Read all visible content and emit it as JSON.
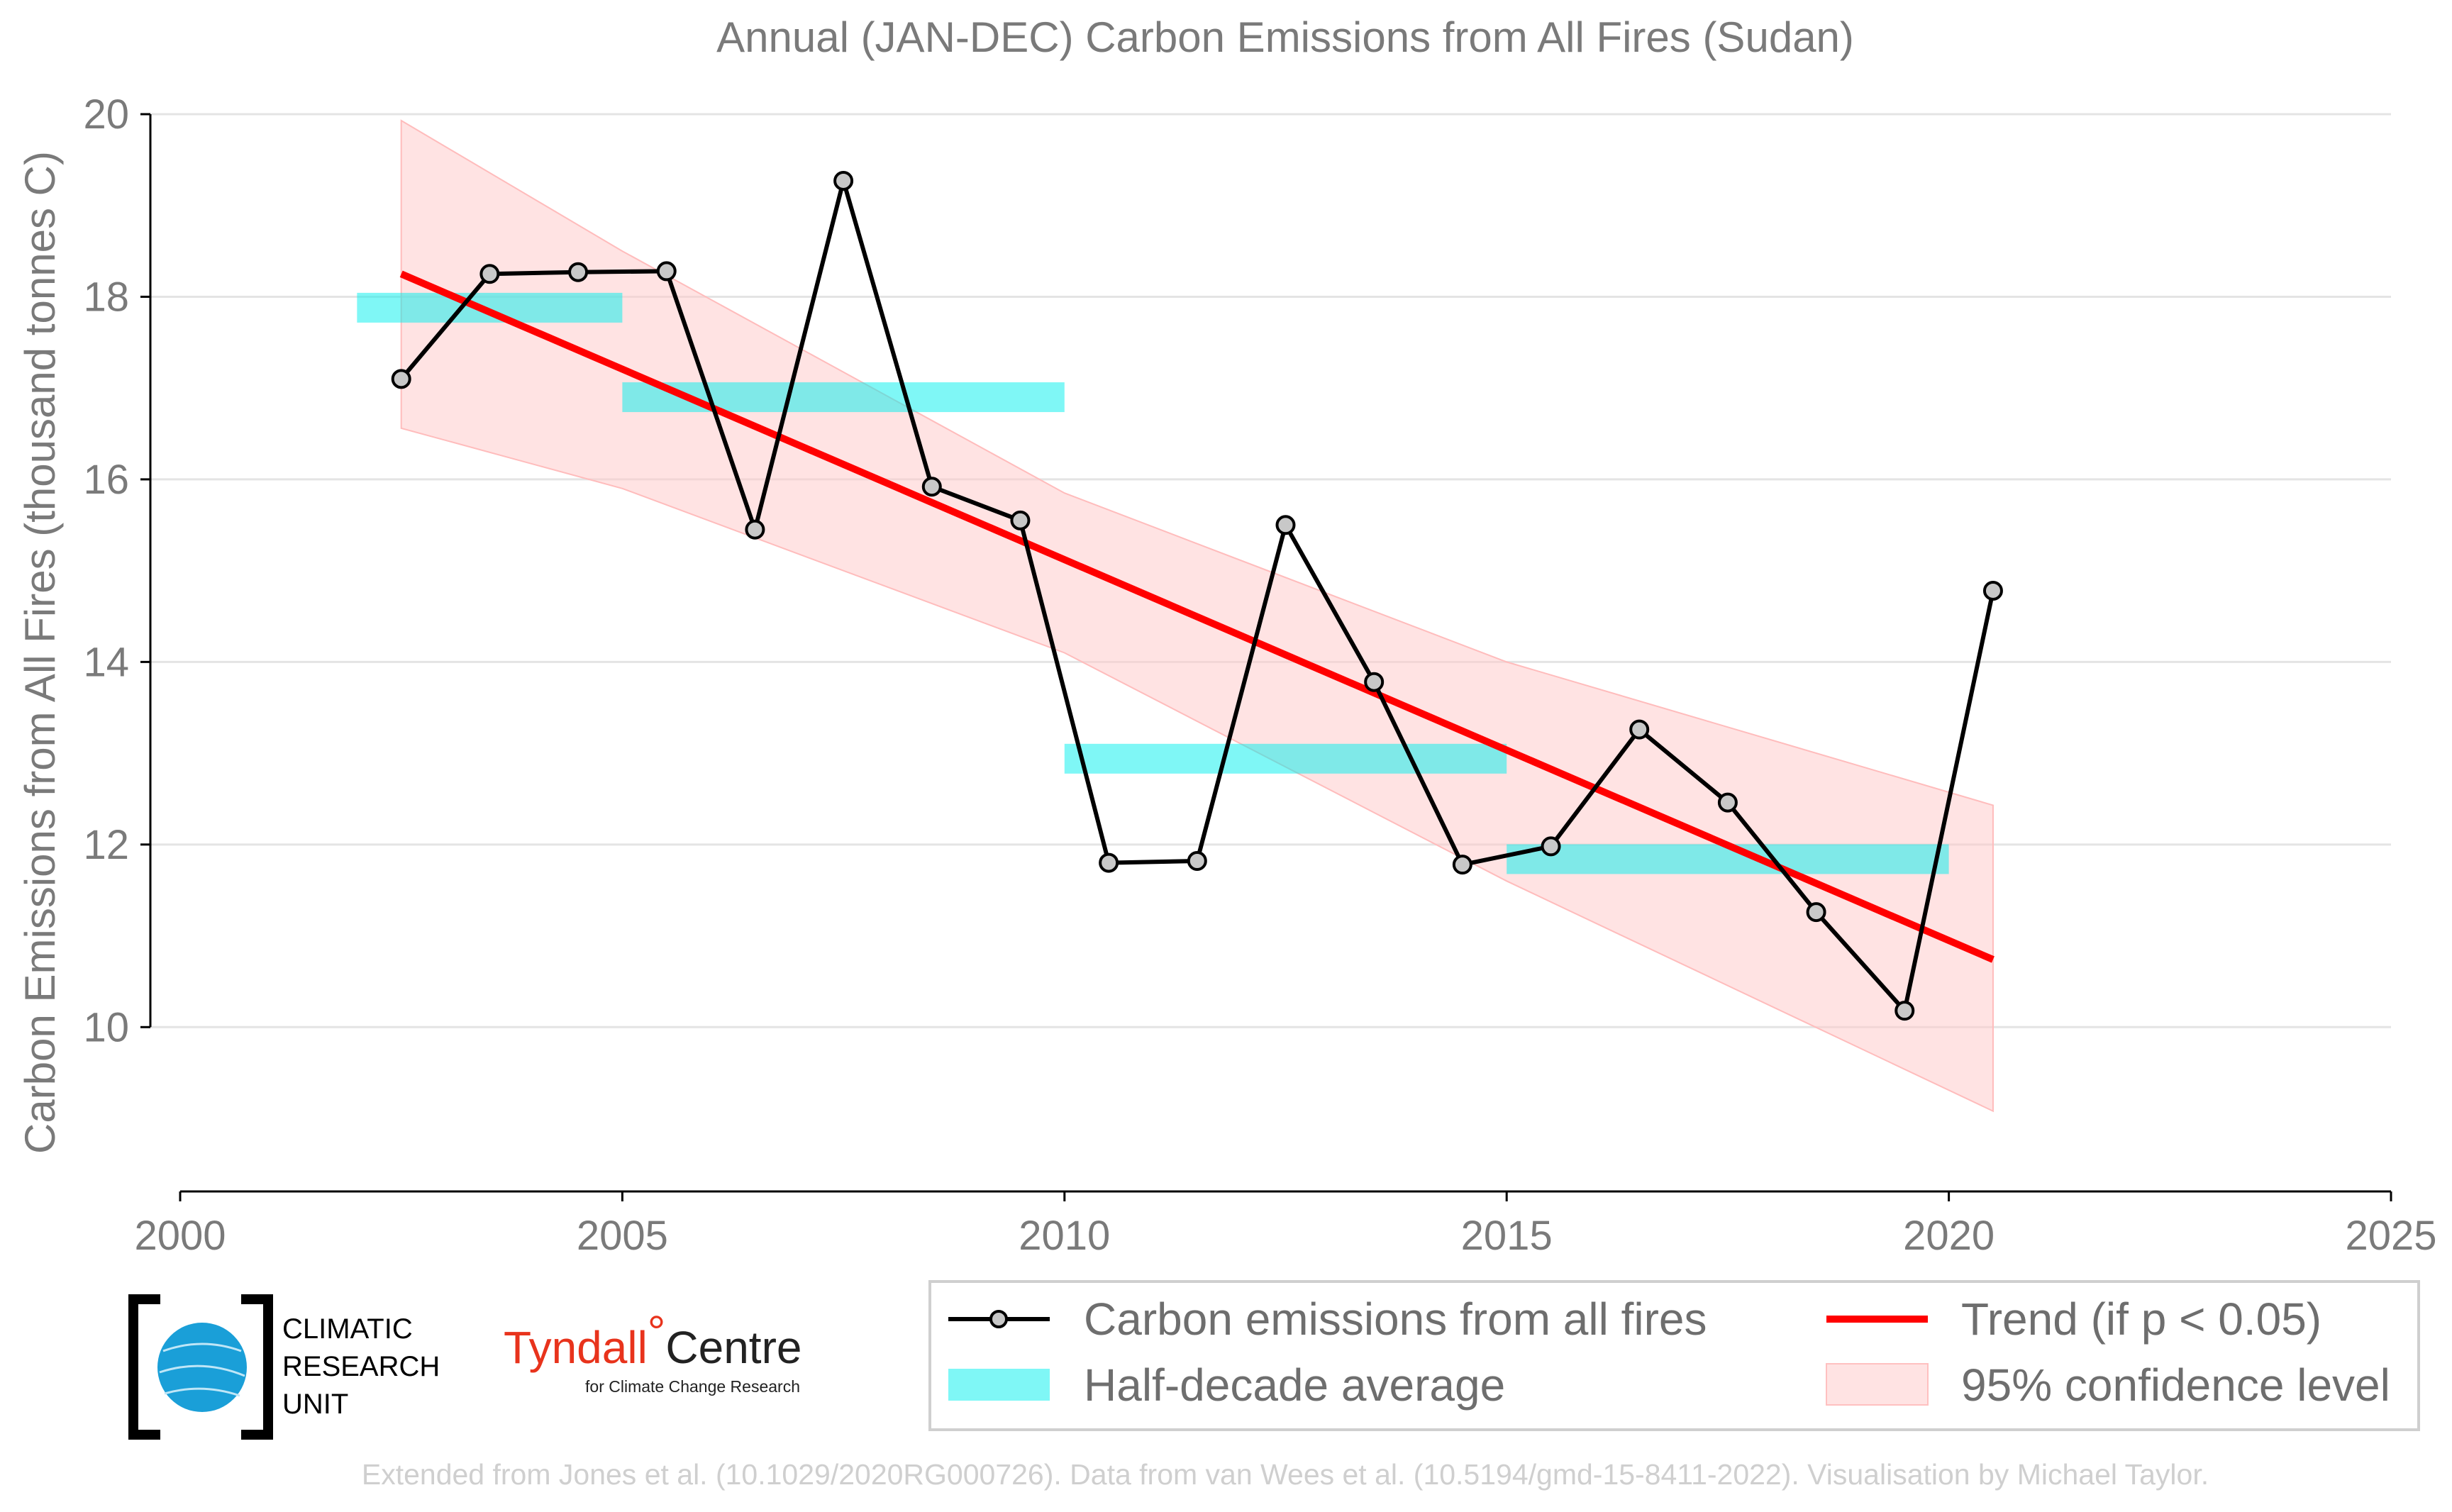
{
  "chart_data": {
    "type": "line",
    "title": "Annual (JAN-DEC) Carbon Emissions from All Fires (Sudan)",
    "xlabel": "",
    "ylabel": "Carbon Emissions from All Fires (thousand tonnes C)",
    "xlim": [
      2000,
      2025
    ],
    "ylim": [
      8.2,
      20
    ],
    "x_ticks": [
      2000,
      2005,
      2010,
      2015,
      2020,
      2025
    ],
    "y_ticks": [
      10,
      12,
      14,
      16,
      18,
      20
    ],
    "grid": "horizontal",
    "legend_position": "bottom-right",
    "series": [
      {
        "name": "Carbon emissions from all fires",
        "kind": "line-markers",
        "color": "#000000",
        "x": [
          2002.5,
          2003.5,
          2004.5,
          2005.5,
          2006.5,
          2007.5,
          2008.5,
          2009.5,
          2010.5,
          2011.5,
          2012.5,
          2013.5,
          2014.5,
          2015.5,
          2016.5,
          2017.5,
          2018.5,
          2019.5,
          2020.5
        ],
        "y": [
          17.1,
          18.25,
          18.27,
          18.28,
          15.45,
          19.27,
          15.92,
          15.55,
          11.8,
          11.82,
          15.5,
          13.78,
          11.78,
          11.98,
          13.26,
          12.46,
          11.26,
          10.18,
          14.78
        ]
      },
      {
        "name": "Half-decade average",
        "kind": "bars",
        "color": "#00f0ee",
        "segments": [
          {
            "x0": 2002,
            "x1": 2005,
            "y": 17.88
          },
          {
            "x0": 2005,
            "x1": 2010,
            "y": 16.9
          },
          {
            "x0": 2010,
            "x1": 2015,
            "y": 12.94
          },
          {
            "x0": 2015,
            "x1": 2020,
            "y": 11.84
          }
        ]
      },
      {
        "name": "Trend (if p < 0.05)",
        "kind": "line",
        "color": "#ff0000",
        "x": [
          2002.5,
          2020.5
        ],
        "y": [
          18.25,
          10.74
        ]
      },
      {
        "name": "95% confidence level",
        "kind": "band",
        "color": "#ffc8c8",
        "x": [
          2002.5,
          2005,
          2010,
          2015,
          2020.5
        ],
        "upper": [
          19.93,
          18.5,
          15.85,
          14.0,
          12.43
        ],
        "lower": [
          16.56,
          15.9,
          14.1,
          11.6,
          9.08
        ]
      }
    ]
  },
  "legend": {
    "items": [
      {
        "label": "Carbon emissions from all fires"
      },
      {
        "label": "Trend (if p < 0.05)"
      },
      {
        "label": "Half-decade average"
      },
      {
        "label": "95% confidence level"
      }
    ]
  },
  "logos": {
    "cru_lines": [
      "CLIMATIC",
      "RESEARCH",
      "UNIT"
    ],
    "tyndall_name": "Tyndall",
    "tyndall_degree": "°",
    "tyndall_centre": "Centre",
    "tyndall_sub": "for Climate Change Research"
  },
  "footer": "Extended from Jones et al. (10.1029/2020RG000726). Data from van Wees et al. (10.5194/gmd-15-8411-2022). Visualisation by Michael Taylor."
}
